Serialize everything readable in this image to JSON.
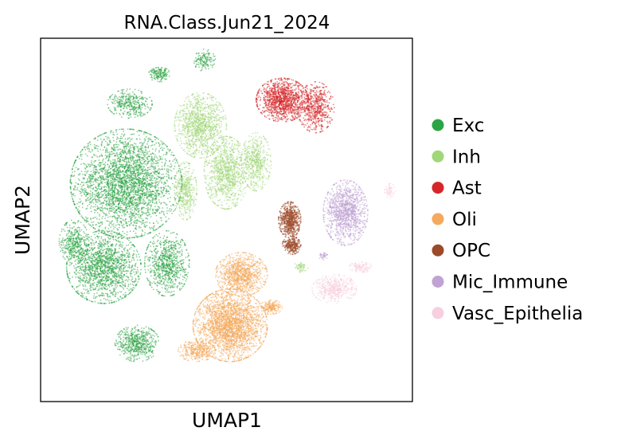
{
  "chart_data": {
    "type": "scatter",
    "title": "RNA.Class.Jun21_2024",
    "xlabel": "UMAP1",
    "ylabel": "UMAP2",
    "grid": false,
    "ticks": false,
    "legend_position": "right",
    "xlim": [
      0,
      100
    ],
    "ylim": [
      0,
      100
    ],
    "series": [
      {
        "name": "Exc",
        "color": "#2ca443",
        "clusters": [
          {
            "cx": 23,
            "cy": 60,
            "rx": 15,
            "ry": 15,
            "n": 3200
          },
          {
            "cx": 17,
            "cy": 37,
            "rx": 10,
            "ry": 10,
            "n": 1600
          },
          {
            "cx": 34,
            "cy": 38,
            "rx": 6,
            "ry": 9,
            "n": 800
          },
          {
            "cx": 26,
            "cy": 16,
            "rx": 6,
            "ry": 5,
            "n": 550
          },
          {
            "cx": 24,
            "cy": 82,
            "rx": 6,
            "ry": 4,
            "n": 350
          },
          {
            "cx": 32,
            "cy": 90,
            "rx": 3,
            "ry": 2,
            "n": 160
          },
          {
            "cx": 44,
            "cy": 94,
            "rx": 3,
            "ry": 3,
            "n": 140
          },
          {
            "cx": 9,
            "cy": 44,
            "rx": 4,
            "ry": 6,
            "n": 350
          }
        ]
      },
      {
        "name": "Inh",
        "color": "#a0d779",
        "clusters": [
          {
            "cx": 43,
            "cy": 76,
            "rx": 7,
            "ry": 9,
            "n": 1100
          },
          {
            "cx": 50,
            "cy": 63,
            "rx": 6,
            "ry": 10,
            "n": 1000
          },
          {
            "cx": 58,
            "cy": 66,
            "rx": 4,
            "ry": 8,
            "n": 500
          },
          {
            "cx": 39,
            "cy": 58,
            "rx": 3,
            "ry": 8,
            "n": 400
          },
          {
            "cx": 70,
            "cy": 37,
            "rx": 2,
            "ry": 1.5,
            "n": 60
          }
        ]
      },
      {
        "name": "Ast",
        "color": "#d62628",
        "clusters": [
          {
            "cx": 65,
            "cy": 83,
            "rx": 7,
            "ry": 6,
            "n": 1200
          },
          {
            "cx": 74,
            "cy": 81,
            "rx": 5,
            "ry": 7,
            "n": 600
          }
        ]
      },
      {
        "name": "Oli",
        "color": "#f4a95d",
        "clusters": [
          {
            "cx": 51,
            "cy": 21,
            "rx": 10,
            "ry": 10,
            "n": 2600
          },
          {
            "cx": 54,
            "cy": 35,
            "rx": 7,
            "ry": 6,
            "n": 1000
          },
          {
            "cx": 42,
            "cy": 14,
            "rx": 5,
            "ry": 3,
            "n": 350
          },
          {
            "cx": 62,
            "cy": 26,
            "rx": 3,
            "ry": 2,
            "n": 200
          }
        ]
      },
      {
        "name": "OPC",
        "color": "#9c4a2a",
        "clusters": [
          {
            "cx": 67,
            "cy": 50,
            "rx": 3,
            "ry": 5,
            "n": 700
          },
          {
            "cx": 67.5,
            "cy": 43,
            "rx": 2.5,
            "ry": 2.5,
            "n": 300
          }
        ]
      },
      {
        "name": "Mic_Immune",
        "color": "#c0a3d4",
        "clusters": [
          {
            "cx": 82,
            "cy": 52,
            "rx": 6,
            "ry": 9,
            "n": 1200
          },
          {
            "cx": 76,
            "cy": 40,
            "rx": 1.2,
            "ry": 1,
            "n": 40
          }
        ]
      },
      {
        "name": "Vasc_Epithelia",
        "color": "#f7cfdf",
        "clusters": [
          {
            "cx": 79,
            "cy": 31,
            "rx": 6,
            "ry": 4,
            "n": 500
          },
          {
            "cx": 86,
            "cy": 37,
            "rx": 3,
            "ry": 1.5,
            "n": 120
          },
          {
            "cx": 94,
            "cy": 58,
            "rx": 1.5,
            "ry": 2,
            "n": 60
          }
        ]
      }
    ]
  }
}
